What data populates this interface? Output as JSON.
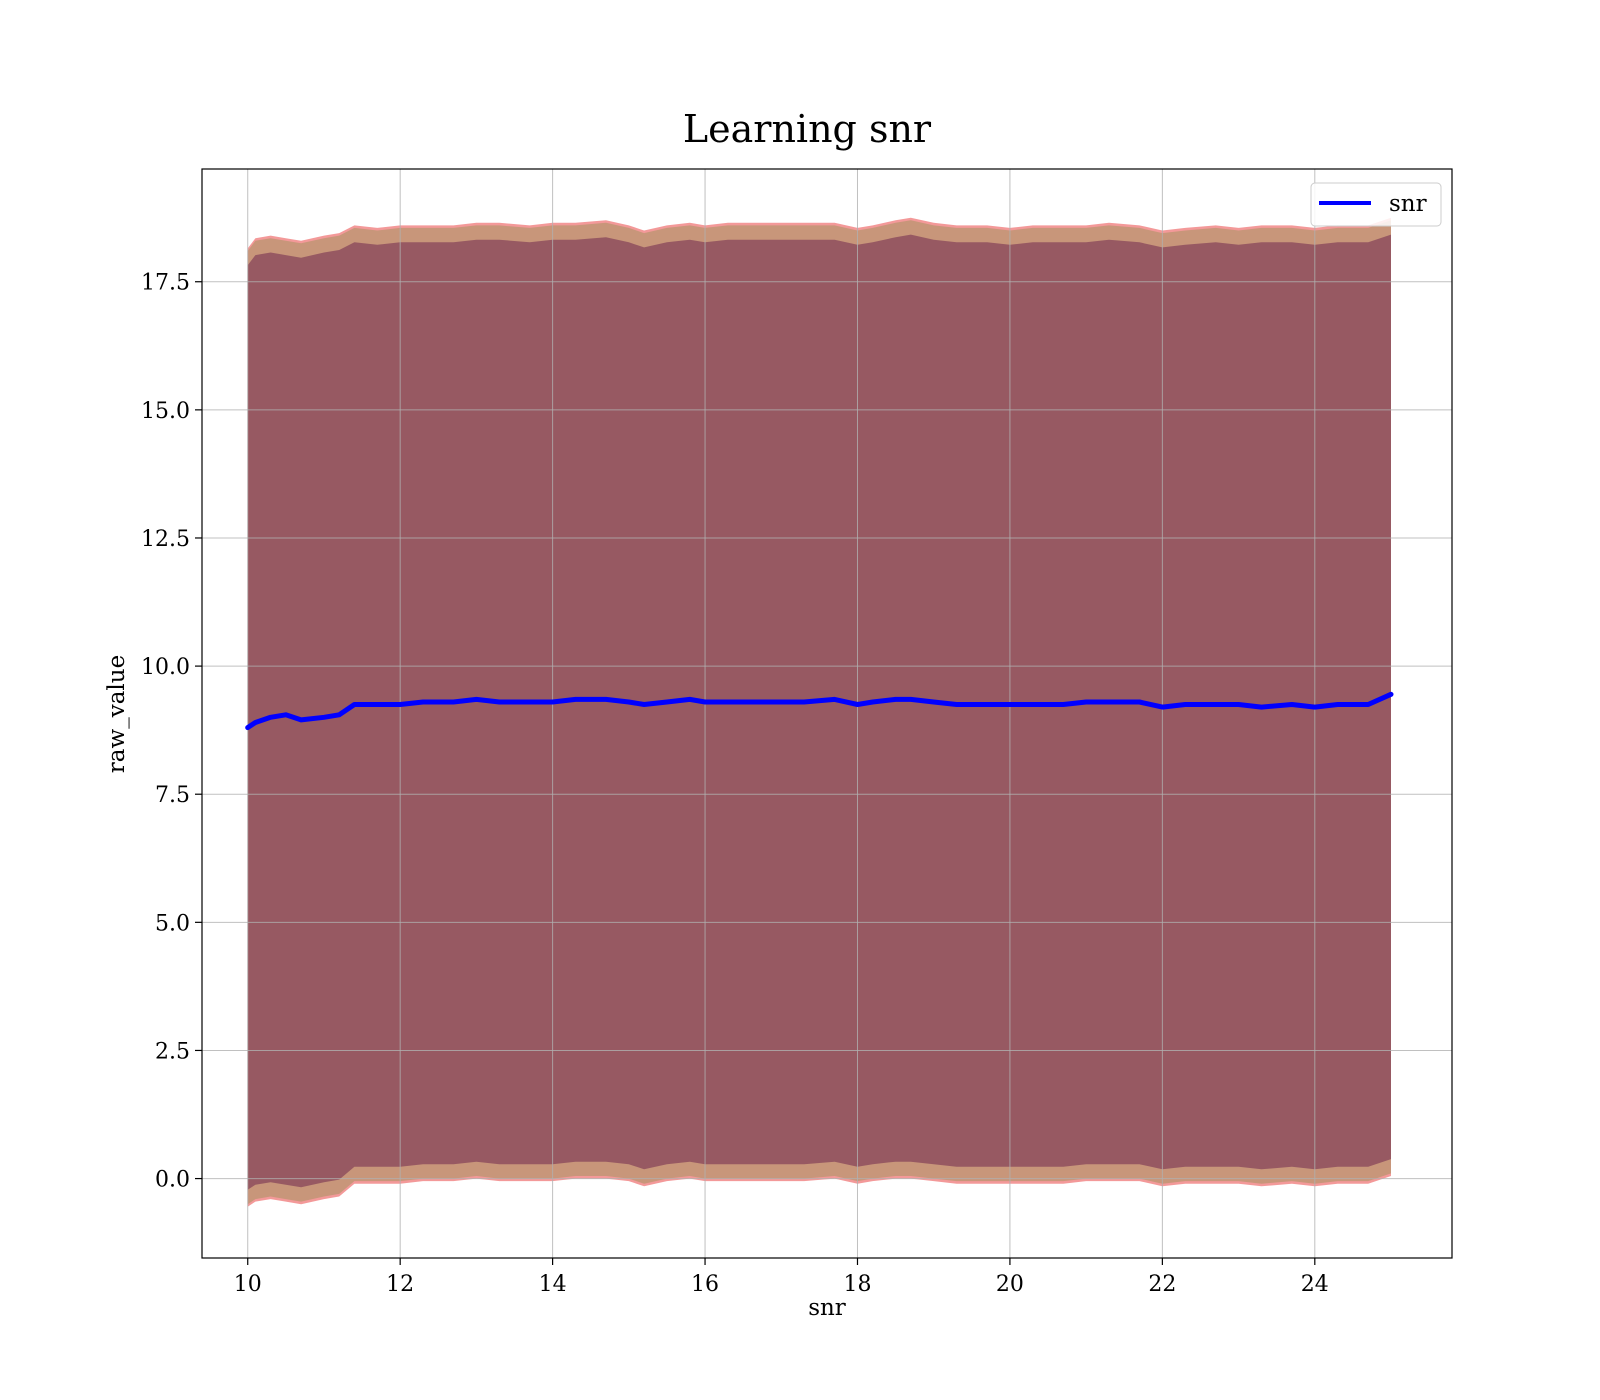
{
  "chart_data": {
    "type": "line",
    "title": "Learning snr",
    "xlabel": "snr",
    "ylabel": "raw_value",
    "xlim": [
      9.4,
      25.8
    ],
    "ylim": [
      -1.55,
      19.7
    ],
    "xticks": [
      10,
      12,
      14,
      16,
      18,
      20,
      22,
      24
    ],
    "yticks": [
      0.0,
      2.5,
      5.0,
      7.5,
      10.0,
      12.5,
      15.0,
      17.5
    ],
    "ytick_labels": [
      "0.0",
      "2.5",
      "5.0",
      "7.5",
      "10.0",
      "12.5",
      "15.0",
      "17.5"
    ],
    "grid": true,
    "legend": {
      "position": "top-right",
      "entries": [
        "snr"
      ]
    },
    "colors": {
      "line": "#0000ff",
      "band_outer": "#f08080",
      "band_mid": "#c8967a",
      "band_inner": "#8b4a5c"
    },
    "series": [
      {
        "name": "snr",
        "x": [
          10.0,
          10.1,
          10.3,
          10.5,
          10.7,
          11.0,
          11.2,
          11.4,
          11.7,
          12.0,
          12.3,
          12.7,
          13.0,
          13.3,
          13.7,
          14.0,
          14.3,
          14.7,
          15.0,
          15.2,
          15.5,
          15.8,
          16.0,
          16.3,
          16.7,
          17.0,
          17.3,
          17.7,
          18.0,
          18.2,
          18.5,
          18.7,
          19.0,
          19.3,
          19.7,
          20.0,
          20.3,
          20.7,
          21.0,
          21.3,
          21.7,
          22.0,
          22.3,
          22.7,
          23.0,
          23.3,
          23.7,
          24.0,
          24.3,
          24.7,
          25.0
        ],
        "y": [
          8.8,
          8.9,
          9.0,
          9.05,
          8.95,
          9.0,
          9.05,
          9.25,
          9.25,
          9.25,
          9.3,
          9.3,
          9.35,
          9.3,
          9.3,
          9.3,
          9.35,
          9.35,
          9.3,
          9.25,
          9.3,
          9.35,
          9.3,
          9.3,
          9.3,
          9.3,
          9.3,
          9.35,
          9.25,
          9.3,
          9.35,
          9.35,
          9.3,
          9.25,
          9.25,
          9.25,
          9.25,
          9.25,
          9.3,
          9.3,
          9.3,
          9.2,
          9.25,
          9.25,
          9.25,
          9.2,
          9.25,
          9.2,
          9.25,
          9.25,
          9.45
        ],
        "upper": [
          18.1,
          18.3,
          18.35,
          18.3,
          18.25,
          18.35,
          18.4,
          18.55,
          18.5,
          18.55,
          18.55,
          18.55,
          18.6,
          18.6,
          18.55,
          18.6,
          18.6,
          18.65,
          18.55,
          18.45,
          18.55,
          18.6,
          18.55,
          18.6,
          18.6,
          18.6,
          18.6,
          18.6,
          18.5,
          18.55,
          18.65,
          18.7,
          18.6,
          18.55,
          18.55,
          18.5,
          18.55,
          18.55,
          18.55,
          18.6,
          18.55,
          18.45,
          18.5,
          18.55,
          18.5,
          18.55,
          18.55,
          18.5,
          18.55,
          18.55,
          18.7
        ],
        "lower": [
          -0.5,
          -0.4,
          -0.35,
          -0.4,
          -0.45,
          -0.35,
          -0.3,
          -0.05,
          -0.05,
          -0.05,
          0.0,
          0.0,
          0.05,
          0.0,
          0.0,
          0.0,
          0.05,
          0.05,
          0.0,
          -0.1,
          0.0,
          0.05,
          0.0,
          0.0,
          0.0,
          0.0,
          0.0,
          0.05,
          -0.05,
          0.0,
          0.05,
          0.05,
          0.0,
          -0.05,
          -0.05,
          -0.05,
          -0.05,
          -0.05,
          0.0,
          0.0,
          0.0,
          -0.1,
          -0.05,
          -0.05,
          -0.05,
          -0.1,
          -0.05,
          -0.1,
          -0.05,
          -0.05,
          0.1
        ]
      }
    ]
  }
}
